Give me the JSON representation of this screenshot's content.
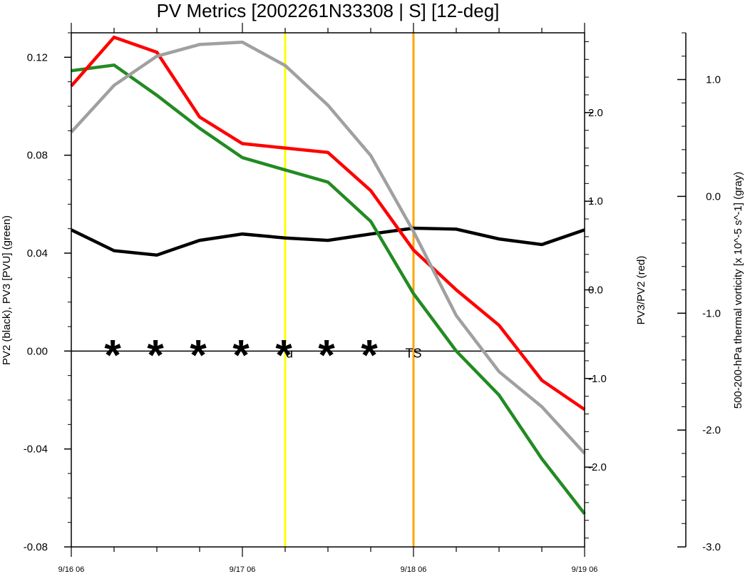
{
  "chart_data": {
    "type": "line",
    "title": "PV Metrics [2002261N33308 | S] [12-deg]",
    "x_tick_labels": [
      "9/16 06",
      "9/17 06",
      "9/18 06",
      "9/19 06"
    ],
    "x_points": 13,
    "axes": {
      "left": {
        "label": "PV2 (black), PV3 [PVU] (green)",
        "range": [
          -0.08,
          0.13
        ],
        "ticks": [
          -0.08,
          -0.04,
          0.0,
          0.04,
          0.08,
          0.12
        ],
        "tick_labels": [
          "-0.08",
          "-0.04",
          "0.00",
          "0.04",
          "0.08",
          "0.12"
        ],
        "minor_step": 0.01
      },
      "right": {
        "label": "PV3/PV2 (red)",
        "range": [
          -2.9,
          2.9
        ],
        "ticks": [
          -2.0,
          -1.0,
          0.0,
          1.0,
          2.0
        ],
        "tick_labels": [
          "-2.0",
          "-1.0",
          "0.0",
          "1.0",
          "2.0"
        ],
        "minor_step": 0.2
      },
      "far_right": {
        "label": "500-200-hPa thermal vorticity [x 10^-5 s^-1] (gray)",
        "range": [
          -3.0,
          1.4
        ],
        "ticks": [
          -3.0,
          -2.0,
          -1.0,
          0.0,
          1.0
        ],
        "tick_labels": [
          "-3.0",
          "-2.0",
          "-1.0",
          "0.0",
          "1.0"
        ],
        "minor_step": 0.2
      }
    },
    "series": [
      {
        "axis": "left",
        "color": "#000000",
        "values": [
          0.0495,
          0.041,
          0.0392,
          0.0452,
          0.0478,
          0.0462,
          0.0452,
          0.0478,
          0.0502,
          0.0498,
          0.0458,
          0.0435,
          0.0495
        ]
      },
      {
        "axis": "left",
        "color": "#228b22",
        "values": [
          0.1145,
          0.1168,
          0.1045,
          0.091,
          0.079,
          0.074,
          0.069,
          0.053,
          0.0235,
          0.0,
          -0.018,
          -0.044,
          -0.0665
        ]
      },
      {
        "axis": "right",
        "color": "#ff0000",
        "values": [
          2.3,
          2.85,
          2.68,
          1.95,
          1.65,
          1.6,
          1.55,
          1.12,
          0.45,
          0.0,
          -0.4,
          -1.02,
          -1.35
        ]
      },
      {
        "axis": "far_right",
        "color": "#a0a0a0",
        "values": [
          0.55,
          0.95,
          1.2,
          1.3,
          1.32,
          1.12,
          0.78,
          0.35,
          -0.3,
          -1.02,
          -1.5,
          -1.8,
          -2.2
        ]
      }
    ],
    "vertical_lines": [
      {
        "x_index": 5,
        "color": "#ffff00"
      },
      {
        "x_index": 8,
        "color": "#ffa500"
      }
    ],
    "markers": [
      {
        "x_index": 1,
        "symbol": "*"
      },
      {
        "x_index": 2,
        "symbol": "*"
      },
      {
        "x_index": 3,
        "symbol": "*"
      },
      {
        "x_index": 4,
        "symbol": "*"
      },
      {
        "x_index": 5,
        "symbol": "*"
      },
      {
        "x_index": 6,
        "symbol": "*"
      },
      {
        "x_index": 7,
        "symbol": "*"
      }
    ],
    "annotations": [
      {
        "x_index": 5.1,
        "text": "u"
      },
      {
        "x_index": 8.0,
        "text": "TS"
      }
    ],
    "zero_line": true
  }
}
